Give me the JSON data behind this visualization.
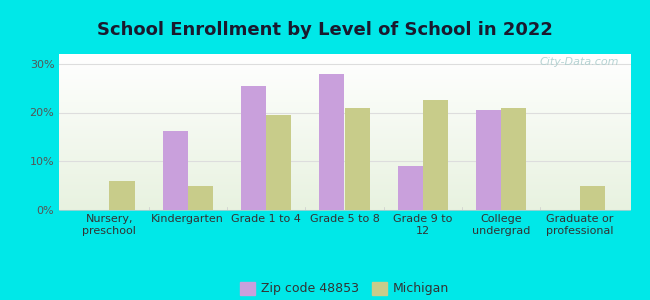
{
  "title": "School Enrollment by Level of School in 2022",
  "categories": [
    "Nursery,\npreschool",
    "Kindergarten",
    "Grade 1 to 4",
    "Grade 5 to 8",
    "Grade 9 to\n12",
    "College\nundergrad",
    "Graduate or\nprofessional"
  ],
  "zip_values": [
    0,
    16.3,
    25.5,
    28.0,
    9.0,
    20.5,
    0
  ],
  "michigan_values": [
    6.0,
    5.0,
    19.5,
    21.0,
    22.5,
    21.0,
    5.0
  ],
  "zip_color": "#c9a0dc",
  "michigan_color": "#c8cc8a",
  "background_outer": "#00e8e8",
  "ylim": [
    0,
    32
  ],
  "yticks": [
    0,
    10,
    20,
    30
  ],
  "ytick_labels": [
    "0%",
    "10%",
    "20%",
    "30%"
  ],
  "legend_zip_label": "Zip code 48853",
  "legend_michigan_label": "Michigan",
  "watermark": "City-Data.com",
  "title_fontsize": 13,
  "tick_fontsize": 8,
  "legend_fontsize": 9,
  "bar_width": 0.32
}
